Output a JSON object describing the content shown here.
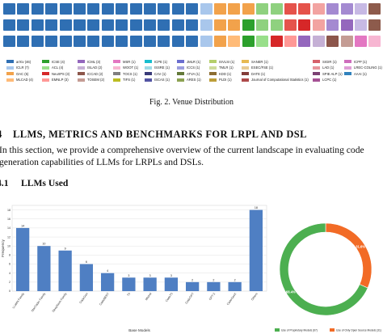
{
  "waffle": {
    "rows": [
      [
        "#2f6fb3",
        "#2f6fb3",
        "#2f6fb3",
        "#2f6fb3",
        "#2f6fb3",
        "#2f6fb3",
        "#2f6fb3",
        "#2f6fb3",
        "#2f6fb3",
        "#2f6fb3",
        "#2f6fb3",
        "#2f6fb3",
        "#2f6fb3",
        "#2f6fb3",
        "#a9c7ec",
        "#f2a24b",
        "#f2a24b",
        "#f2a24b",
        "#8fd17f",
        "#8fd17f",
        "#e5534b",
        "#e5534b",
        "#f2a3a1",
        "#a48ad1",
        "#a48ad1",
        "#c7b9e4",
        "#8d5b4c",
        "#c49d95",
        "#e47fc0",
        "#f6b9dc",
        "#8e8e8e"
      ],
      [
        "#2f6fb3",
        "#2f6fb3",
        "#2f6fb3",
        "#2f6fb3",
        "#2f6fb3",
        "#2f6fb3",
        "#2f6fb3",
        "#2f6fb3",
        "#2f6fb3",
        "#2f6fb3",
        "#2f6fb3",
        "#2f6fb3",
        "#2f6fb3",
        "#2f6fb3",
        "#a9c7ec",
        "#f2a24b",
        "#f2a24b",
        "#2ca02c",
        "#8fd17f",
        "#8fd17f",
        "#e5534b",
        "#d62728",
        "#f2a3a1",
        "#a48ad1",
        "#9467bd",
        "#c7b9e4",
        "#8d5b4c",
        "#c49d95",
        "#e47fc0",
        "#f6b9dc",
        "#8e8e8e"
      ],
      [
        "#2f6fb3",
        "#2f6fb3",
        "#2f6fb3",
        "#2f6fb3",
        "#2f6fb3",
        "#2f6fb3",
        "#2f6fb3",
        "#2f6fb3",
        "#2f6fb3",
        "#2f6fb3",
        "#2f6fb3",
        "#2f6fb3",
        "#2f6fb3",
        "#2f6fb3",
        "#a9c7ec",
        "#f2a24b",
        "#ffbb78",
        "#2ca02c",
        "#98df8a",
        "#d62728",
        "#ff9896",
        "#9467bd",
        "#c5b0d5",
        "#8c564b",
        "#c49c94",
        "#e377c2",
        "#f7b6d2",
        "#7f7f7f",
        "#bcbd22",
        "#17becf",
        "#9edae5"
      ]
    ]
  },
  "legend": {
    "columns": [
      [
        {
          "label": "arXiv (46)",
          "color": "#2f6fb3"
        },
        {
          "label": "ICLR (7)",
          "color": "#a9c7ec"
        },
        {
          "label": "OAC (5)",
          "color": "#f2a24b"
        },
        {
          "label": "MLCAD (4)",
          "color": "#ffbb78"
        }
      ],
      [
        {
          "label": "ICSE (4)",
          "color": "#2ca02c"
        },
        {
          "label": "ACL (4)",
          "color": "#98df8a"
        },
        {
          "label": "NeurIPS (3)",
          "color": "#d62728"
        },
        {
          "label": "EMNLP (3)",
          "color": "#ff9896"
        }
      ],
      [
        {
          "label": "ICML (3)",
          "color": "#9467bd"
        },
        {
          "label": "ISLAD (2)",
          "color": "#c5b0d5"
        },
        {
          "label": "ICCAD (2)",
          "color": "#8c564b"
        },
        {
          "label": "TOSEM (2)",
          "color": "#c49c94"
        }
      ],
      [
        {
          "label": "MSR (1)",
          "color": "#e377c2"
        },
        {
          "label": "WOOT (1)",
          "color": "#f7b6d2"
        },
        {
          "label": "TOCS (1)",
          "color": "#7f7f7f"
        },
        {
          "label": "TIFS (1)",
          "color": "#bcbd22"
        }
      ],
      [
        {
          "label": "ICPE (1)",
          "color": "#17becf"
        },
        {
          "label": "ISSRE (1)",
          "color": "#9edae5"
        },
        {
          "label": "CAV (1)",
          "color": "#393b79"
        },
        {
          "label": "ISCAS (1)",
          "color": "#5254a3"
        }
      ],
      [
        {
          "label": "JMLR (1)",
          "color": "#6b6ecf"
        },
        {
          "label": "ICCS (1)",
          "color": "#9c9ede"
        },
        {
          "label": "ATVA (1)",
          "color": "#637939"
        },
        {
          "label": "ARES (1)",
          "color": "#8ca252"
        }
      ],
      [
        {
          "label": "ISVLSI (1)",
          "color": "#b5cf6b"
        },
        {
          "label": "TMLR (1)",
          "color": "#cedb9c"
        },
        {
          "label": "KDD (1)",
          "color": "#8c6d31"
        },
        {
          "label": "PLDI (1)",
          "color": "#bd9e39"
        }
      ],
      [
        {
          "label": "SANER (1)",
          "color": "#e7ba52"
        },
        {
          "label": "ESEC/FSE (1)",
          "color": "#e7cb94"
        },
        {
          "label": "DATE (1)",
          "color": "#843c39"
        },
        {
          "label": "Journal of Computational Statistics (1)",
          "color": "#ad494a"
        }
      ],
      [
        {
          "label": "SIGIR (1)",
          "color": "#d6616b"
        },
        {
          "label": "LAD (1)",
          "color": "#e7969c"
        },
        {
          "label": "SPIE ALP (1)",
          "color": "#7b4173"
        },
        {
          "label": "LCPC (1)",
          "color": "#a55194"
        }
      ],
      [
        {
          "label": "ICPP (1)",
          "color": "#ce6dbd"
        },
        {
          "label": "LREC-COLING (1)",
          "color": "#de9ed6"
        },
        {
          "label": "AAAI (1)",
          "color": "#3182bd"
        }
      ]
    ]
  },
  "caption": "Fig. 2.  Venue Distribution",
  "section4": {
    "number": "4",
    "title": "LLMS, METRICS AND BENCHMARKS FOR LRPL AND DSL"
  },
  "paragraph": {
    "line1": "In this section, we provide a comprehensive overview of the current landscape in evaluating code",
    "line2": "generation capabilities of LLMs for LRPLs and DSLs."
  },
  "section41": {
    "number": "4.1",
    "title": "LLMs Used"
  },
  "chart_data": [
    {
      "type": "bar",
      "xlabel": "Base Models",
      "ylabel": "Frequency",
      "ylim": [
        0,
        19
      ],
      "yticks": [
        0,
        2,
        4,
        6,
        8,
        10,
        12,
        14,
        16,
        18
      ],
      "grid": true,
      "color": "#4f7fc3",
      "categories": [
        "LLaMA Family",
        "StarCoder Family",
        "DeepSeek Family",
        "CodeGen",
        "CodeBERT",
        "T5",
        "Mistral",
        "CodeT5",
        "CodeGPT",
        "GPT-2",
        "CodeGeeX",
        "Others"
      ],
      "values": [
        14,
        10,
        9,
        6,
        4,
        3,
        3,
        3,
        2,
        2,
        2,
        18
      ]
    },
    {
      "type": "pie",
      "donut": true,
      "labels": [
        "Use of Proprietary Models (67)",
        "Use of Only Open Source Models (31)"
      ],
      "values": [
        67,
        31
      ],
      "percent_labels": [
        "68.4%",
        "31.6%"
      ],
      "colors": [
        "#4caf50",
        "#f26b26"
      ],
      "legend_position": "bottom"
    }
  ]
}
